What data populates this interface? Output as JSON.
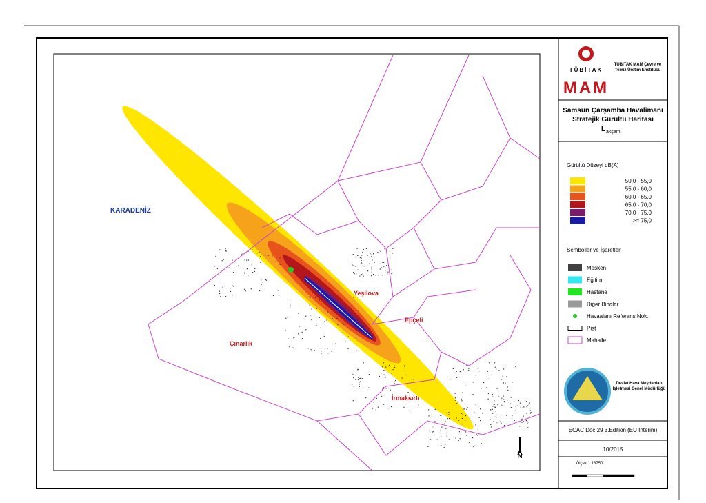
{
  "header": {
    "logo_word": "TÜBİTAK",
    "institute": "TÜBİTAK MAM Çevre ve Temiz Üretim Enstitüsü",
    "brand": "MAM"
  },
  "title": {
    "line1": "Samsun Çarşamba Havalimanı",
    "line2": "Stratejik Gürültü Haritası",
    "metric": "L",
    "metric_sub": "akşam"
  },
  "noise_legend": {
    "title": "Gürültü Düzeyi dB(A)",
    "items": [
      {
        "label": "50,0  -  55,0",
        "color": "#ffe600"
      },
      {
        "label": "55,0  -  60,0",
        "color": "#f7a21b"
      },
      {
        "label": "60,0  -  65,0",
        "color": "#e8531d"
      },
      {
        "label": "65,0  -  70,0",
        "color": "#b3161b"
      },
      {
        "label": "70,0  -  75,0",
        "color": "#7d1a6b"
      },
      {
        "label": ">=  75,0",
        "color": "#1a1aa8"
      }
    ]
  },
  "symbols": {
    "title": "Semboller ve İşaretler",
    "items": [
      {
        "label": "Mesken",
        "color": "#404040",
        "shape": "box"
      },
      {
        "label": "Eğitim",
        "color": "#33e6f0",
        "shape": "box"
      },
      {
        "label": "Hastane",
        "color": "#22e622",
        "shape": "box"
      },
      {
        "label": "Diğer Binalar",
        "color": "#9a9a9a",
        "shape": "box"
      },
      {
        "label": "Havaalanı Referans Nok.",
        "color": "#22cc22",
        "shape": "dot"
      },
      {
        "label": "Pist",
        "color": "#000000",
        "shape": "runway"
      },
      {
        "label": "Mahalle",
        "color": "#cc44cc",
        "shape": "outline"
      }
    ]
  },
  "authority": "Devlet Hava Meydanları İşletmesi Genel Müdürlüğü",
  "method": "ECAC Doc.29 3.Edition (EU Interim)",
  "date": "10/2015",
  "scale": "Ölçek 1:18750",
  "places": [
    {
      "label": "KARADENİZ",
      "color": "#1a3aa8"
    },
    {
      "label": "Yeşilova",
      "color": "#cc1a1a"
    },
    {
      "label": "Epçeli",
      "color": "#cc1a1a"
    },
    {
      "label": "Çınarlık",
      "color": "#cc1a1a"
    },
    {
      "label": "Irmaksırtı",
      "color": "#cc1a1a"
    }
  ],
  "north": "N"
}
